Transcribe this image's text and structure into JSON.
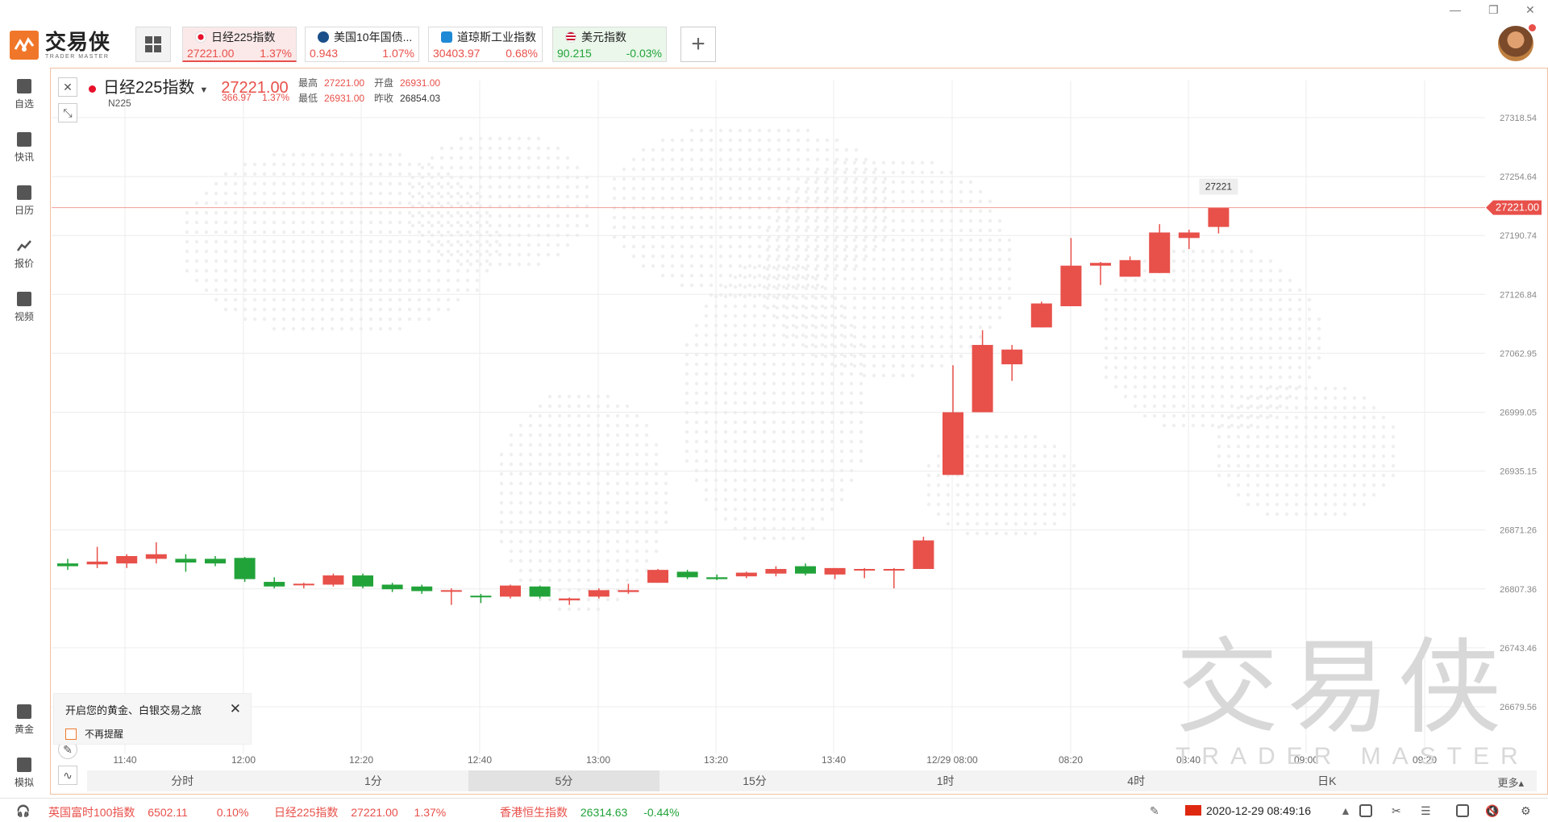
{
  "app": {
    "logo_cn": "交易侠",
    "logo_en": "TRADER MASTER"
  },
  "tabs": [
    {
      "name": "日经225指数",
      "price": "27221.00",
      "change": "1.37%",
      "color": "red",
      "active": true
    },
    {
      "name": "美国10年国债...",
      "price": "0.943",
      "change": "1.07%",
      "color": "red",
      "active": false
    },
    {
      "name": "道琼斯工业指数",
      "price": "30403.97",
      "change": "0.68%",
      "color": "red",
      "active": false
    },
    {
      "name": "美元指数",
      "price": "90.215",
      "change": "-0.03%",
      "color": "green",
      "active": false
    }
  ],
  "sidebar": {
    "top": [
      {
        "label": "自选",
        "icon": "star-icon"
      },
      {
        "label": "快讯",
        "icon": "news-icon"
      },
      {
        "label": "日历",
        "icon": "calendar-icon"
      },
      {
        "label": "报价",
        "icon": "trend-icon"
      },
      {
        "label": "视频",
        "icon": "video-icon"
      }
    ],
    "bottom": [
      {
        "label": "黄金",
        "icon": "gold-icon"
      },
      {
        "label": "模拟",
        "icon": "wallet-icon"
      }
    ]
  },
  "symbol": {
    "name": "日经225指数",
    "code": "N225",
    "price": "27221.00",
    "change": "366.97",
    "change_pct": "1.37%",
    "high_label": "最高",
    "high": "27221.00",
    "open_label": "开盘",
    "open": "26931.00",
    "low_label": "最低",
    "low": "26931.00",
    "prev_label": "昨收",
    "prev": "26854.03"
  },
  "periods": {
    "items": [
      "分时",
      "1分",
      "5分",
      "15分",
      "1时",
      "4时",
      "日K"
    ],
    "selected": "5分",
    "more": "更多▴"
  },
  "popup": {
    "title": "开启您的黄金、白银交易之旅",
    "checkbox": "不再提醒"
  },
  "watermark": {
    "cn": "交易侠",
    "en": "TRADER MASTER"
  },
  "ticker": {
    "items": [
      {
        "name": "英国富时100指数",
        "price": "6502.11",
        "change": "0.10%"
      },
      {
        "name": "日经225指数",
        "price": "27221.00",
        "change": "1.37%"
      },
      {
        "name": "香港恒生指数",
        "price": "26314.63",
        "change": "-0.44%"
      }
    ],
    "datetime": "2020-12-29 08:49:16"
  },
  "colors": {
    "up": "#e8504a",
    "down": "#22a33a",
    "accent": "#f0772a"
  },
  "chart_data": {
    "type": "candlestick",
    "y_ticks": [
      27318.54,
      27254.64,
      27190.74,
      27126.84,
      27062.95,
      26999.05,
      26935.15,
      26871.26,
      26807.36,
      26743.46,
      26679.56
    ],
    "x_ticks": [
      "11:40",
      "12:00",
      "12:20",
      "12:40",
      "13:00",
      "13:20",
      "13:40",
      "12/29 08:00",
      "08:20",
      "08:40",
      "09:00",
      "09:20"
    ],
    "last_price": 27221.0,
    "last_price_label": "27221.00",
    "tooltip": "27221",
    "ylim": [
      26650,
      27350
    ],
    "candles": [
      [
        26835,
        26840,
        26828,
        26832
      ],
      [
        26834,
        26853,
        26830,
        26837
      ],
      [
        26835,
        26845,
        26830,
        26843
      ],
      [
        26840,
        26858,
        26835,
        26845
      ],
      [
        26840,
        26845,
        26826,
        26836
      ],
      [
        26840,
        26843,
        26832,
        26835
      ],
      [
        26841,
        26842,
        26815,
        26818
      ],
      [
        26815,
        26820,
        26808,
        26810
      ],
      [
        26812,
        26814,
        26808,
        26813
      ],
      [
        26812,
        26824,
        26810,
        26822
      ],
      [
        26822,
        26824,
        26808,
        26810
      ],
      [
        26812,
        26814,
        26804,
        26807
      ],
      [
        26810,
        26812,
        26802,
        26805
      ],
      [
        26805,
        26808,
        26790,
        26806
      ],
      [
        26800,
        26802,
        26792,
        26799
      ],
      [
        26799,
        26812,
        26797,
        26811
      ],
      [
        26810,
        26811,
        26797,
        26799
      ],
      [
        26795,
        26798,
        26790,
        26797
      ],
      [
        26799,
        26808,
        26797,
        26806
      ],
      [
        26804,
        26813,
        26802,
        26806
      ],
      [
        26814,
        26829,
        26814,
        26828
      ],
      [
        26826,
        26828,
        26818,
        26820
      ],
      [
        26820,
        26823,
        26817,
        26818
      ],
      [
        26821,
        26826,
        26819,
        26825
      ],
      [
        26824,
        26832,
        26821,
        26829
      ],
      [
        26832,
        26835,
        26822,
        26824
      ],
      [
        26823,
        26830,
        26818,
        26830
      ],
      [
        26828,
        26830,
        26819,
        26829
      ],
      [
        26829,
        26830,
        26808,
        26829
      ],
      [
        26829,
        26864,
        26829,
        26860
      ],
      [
        26931,
        27050,
        26931,
        26999
      ],
      [
        26999,
        27088,
        26999,
        27072
      ],
      [
        27051,
        27072,
        27033,
        27067
      ],
      [
        27091,
        27119,
        27091,
        27117
      ],
      [
        27114,
        27188,
        27114,
        27158
      ],
      [
        27158,
        27162,
        27137,
        27161
      ],
      [
        27146,
        27168,
        27146,
        27164
      ],
      [
        27150,
        27203,
        27150,
        27194
      ],
      [
        27188,
        27197,
        27176,
        27194
      ],
      [
        27200,
        27221,
        27193,
        27221
      ]
    ]
  }
}
